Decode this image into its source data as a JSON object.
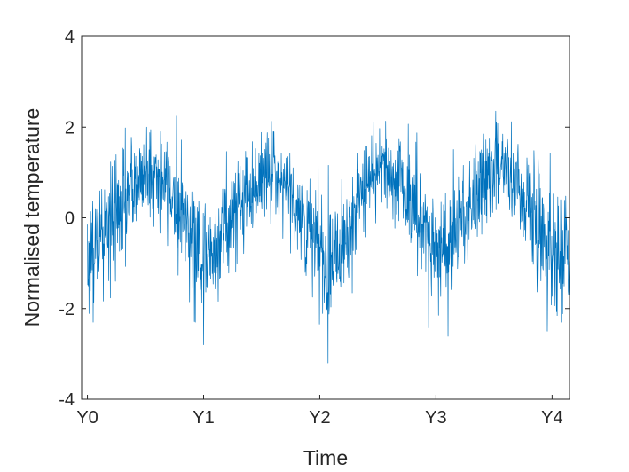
{
  "chart_data": {
    "type": "line",
    "title": "",
    "xlabel": "Time",
    "ylabel": "Normalised temperature",
    "xlim": [
      -0.05,
      4.15
    ],
    "ylim": [
      -4,
      4
    ],
    "x_ticks": [
      {
        "value": 0,
        "label": "Y0"
      },
      {
        "value": 1,
        "label": "Y1"
      },
      {
        "value": 2,
        "label": "Y2"
      },
      {
        "value": 3,
        "label": "Y3"
      },
      {
        "value": 4,
        "label": "Y4"
      }
    ],
    "y_ticks": [
      {
        "value": -4,
        "label": "-4"
      },
      {
        "value": -2,
        "label": "-2"
      },
      {
        "value": 0,
        "label": "0"
      },
      {
        "value": 2,
        "label": "2"
      },
      {
        "value": 4,
        "label": "4"
      }
    ],
    "grid": false,
    "line_color": "#0072BD",
    "series": [
      {
        "points_per_year": 365,
        "x_start": 0,
        "x_end": 4.15,
        "trend": {
          "x": [
            0.0,
            0.15,
            0.3,
            0.5,
            0.7,
            0.9,
            1.0,
            1.1,
            1.3,
            1.55,
            1.7,
            1.95,
            2.05,
            2.3,
            2.5,
            2.7,
            2.9,
            3.0,
            3.1,
            3.3,
            3.5,
            3.7,
            3.9,
            4.0,
            4.15
          ],
          "mean": [
            -0.8,
            -0.3,
            0.3,
            1.0,
            0.7,
            -0.3,
            -0.9,
            -0.6,
            0.3,
            1.0,
            0.8,
            -0.6,
            -1.0,
            0.0,
            1.25,
            0.8,
            -0.3,
            -0.8,
            -0.5,
            0.3,
            1.1,
            0.8,
            -0.2,
            -0.6,
            -0.9
          ],
          "spread": [
            0.7,
            0.7,
            0.65,
            0.5,
            0.55,
            0.65,
            0.7,
            0.65,
            0.55,
            0.45,
            0.5,
            0.7,
            0.75,
            0.6,
            0.45,
            0.5,
            0.65,
            0.7,
            0.65,
            0.55,
            0.5,
            0.55,
            0.65,
            0.7,
            0.75
          ]
        },
        "extremes": [
          {
            "x": 0.05,
            "y": -2.3
          },
          {
            "x": 0.51,
            "y": 2.0
          },
          {
            "x": 0.93,
            "y": -2.3
          },
          {
            "x": 1.0,
            "y": -2.8
          },
          {
            "x": 1.6,
            "y": 1.9
          },
          {
            "x": 2.07,
            "y": -3.2
          },
          {
            "x": 2.46,
            "y": 2.1
          },
          {
            "x": 3.52,
            "y": 2.1
          },
          {
            "x": 3.96,
            "y": -2.5
          },
          {
            "x": 4.08,
            "y": -2.3
          }
        ]
      }
    ]
  }
}
